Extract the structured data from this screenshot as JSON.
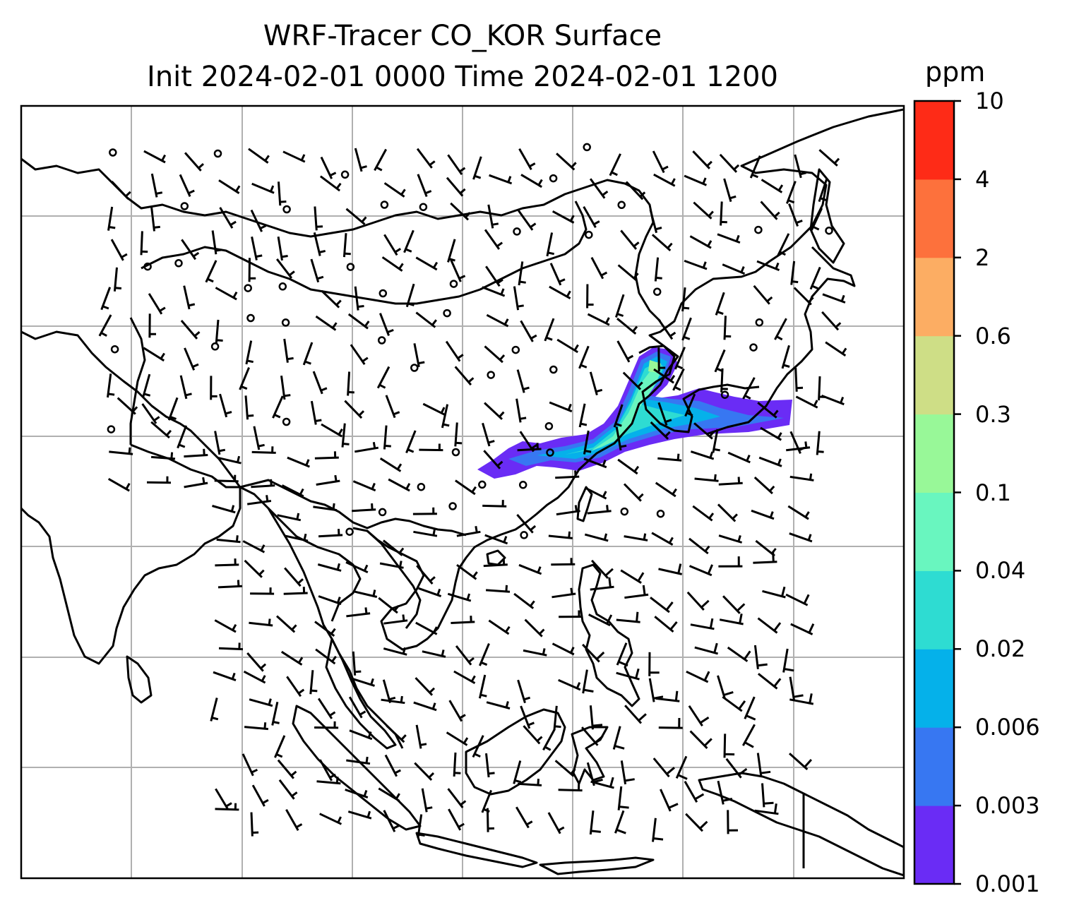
{
  "title": {
    "line1": "WRF-Tracer CO_KOR Surface",
    "line2": "Init 2024-02-01 0000 Time 2024-02-01 1200"
  },
  "colorbar": {
    "unit": "ppm",
    "levels": [
      "0.001",
      "0.003",
      "0.006",
      "0.02",
      "0.04",
      "0.1",
      "0.3",
      "0.6",
      "2",
      "4",
      "10"
    ],
    "colors": [
      "#6a2cf5",
      "#3777f2",
      "#05b1ea",
      "#2edcd2",
      "#69f6bf",
      "#98f898",
      "#cede86",
      "#fcad63",
      "#fd713c",
      "#fe2b17"
    ]
  },
  "map": {
    "gridlines": true,
    "features": [
      "coastlines",
      "country-borders",
      "wind-barbs",
      "co-tracer-plume"
    ]
  }
}
